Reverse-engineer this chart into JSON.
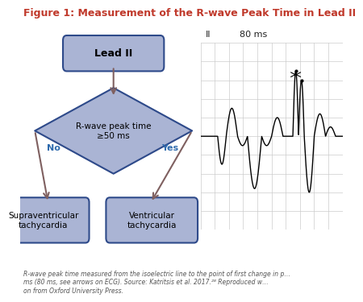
{
  "title": "Figure 1: Measurement of the R-wave Peak Time in Lead II",
  "title_color": "#c0392b",
  "title_fontsize": 9,
  "bg_color": "#ffffff",
  "flowchart": {
    "box_fill": "#aab4d4",
    "box_edge": "#2e4a8a",
    "diamond_fill": "#aab4d4",
    "diamond_edge": "#2e4a8a",
    "arrow_color": "#7f6060",
    "text_color": "#000000",
    "start_box": "Lead II",
    "decision": "R-wave peak time\n≥50 ms",
    "no_label": "No",
    "yes_label": "Yes",
    "no_color": "#2e6aad",
    "yes_color": "#2e6aad",
    "left_outcome": "Supraventricular\ntachycardia",
    "right_outcome": "Ventricular\ntachycardia"
  },
  "ecg_label_II": "II",
  "ecg_label_80ms": "80 ms",
  "ecg_grid_color": "#cccccc",
  "ecg_bg_color": "#e8e8e8",
  "footnote": "R-wave peak time measured from the isoelectric line to the point of first change in p…\nms (80 ms, see arrows on ECG). Source: Katritsis et al. 2017.²⁸ Reproduced w…\non from Oxford University Press.",
  "footnote_fontsize": 5.5,
  "footnote_color": "#555555"
}
